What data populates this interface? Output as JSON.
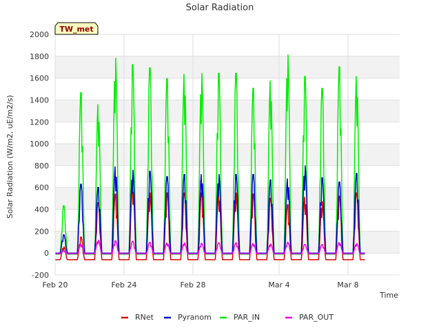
{
  "chart_data": {
    "type": "line",
    "title": "Solar Radiation",
    "xlabel": "Time",
    "ylabel": "Solar Radiation (W/m2, uE/m2/s)",
    "ylim": [
      -200,
      2000
    ],
    "xlim": [
      "2000-02-20",
      "2000-03-11"
    ],
    "yticks": [
      -200,
      0,
      200,
      400,
      600,
      800,
      1000,
      1200,
      1400,
      1600,
      1800,
      2000
    ],
    "xticks": [
      {
        "label": "Feb 20",
        "date": "2000-02-20"
      },
      {
        "label": "Feb 24",
        "date": "2000-02-24"
      },
      {
        "label": "Feb 28",
        "date": "2000-02-28"
      },
      {
        "label": "Mar 4",
        "date": "2000-03-04"
      },
      {
        "label": "Mar 8",
        "date": "2000-03-08"
      }
    ],
    "annotation": "TW_met",
    "grid": true,
    "legend_position": "bottom",
    "series": [
      {
        "name": "RNet",
        "color": "#dd0000",
        "night_value": -60,
        "daily_peaks": [
          [
            "2000-02-20",
            60
          ],
          [
            "2000-02-21",
            150
          ],
          [
            "2000-02-22",
            470
          ],
          [
            "2000-02-23",
            550
          ],
          [
            "2000-02-24",
            650
          ],
          [
            "2000-02-25",
            560
          ],
          [
            "2000-02-26",
            560
          ],
          [
            "2000-02-27",
            560
          ],
          [
            "2000-02-28",
            560
          ],
          [
            "2000-02-29",
            560
          ],
          [
            "2000-03-01",
            560
          ],
          [
            "2000-03-02",
            550
          ],
          [
            "2000-03-03",
            510
          ],
          [
            "2000-03-04",
            450
          ],
          [
            "2000-03-05",
            520
          ],
          [
            "2000-03-06",
            480
          ],
          [
            "2000-03-07",
            530
          ],
          [
            "2000-03-08",
            560
          ]
        ]
      },
      {
        "name": "Pyranom",
        "color": "#0000cc",
        "night_value": 0,
        "daily_peaks": [
          [
            "2000-02-20",
            170
          ],
          [
            "2000-02-21",
            640
          ],
          [
            "2000-02-22",
            610
          ],
          [
            "2000-02-23",
            800
          ],
          [
            "2000-02-24",
            770
          ],
          [
            "2000-02-25",
            760
          ],
          [
            "2000-02-26",
            710
          ],
          [
            "2000-02-27",
            730
          ],
          [
            "2000-02-28",
            730
          ],
          [
            "2000-02-29",
            730
          ],
          [
            "2000-03-01",
            730
          ],
          [
            "2000-03-02",
            730
          ],
          [
            "2000-03-03",
            680
          ],
          [
            "2000-03-04",
            690
          ],
          [
            "2000-03-05",
            810
          ],
          [
            "2000-03-06",
            700
          ],
          [
            "2000-03-07",
            660
          ],
          [
            "2000-03-08",
            740
          ]
        ]
      },
      {
        "name": "PAR_IN",
        "color": "#00ee00",
        "night_value": -10,
        "daily_peaks": [
          [
            "2000-02-20",
            440
          ],
          [
            "2000-02-21",
            1490
          ],
          [
            "2000-02-22",
            1380
          ],
          [
            "2000-02-23",
            1810
          ],
          [
            "2000-02-24",
            1750
          ],
          [
            "2000-02-25",
            1720
          ],
          [
            "2000-02-26",
            1620
          ],
          [
            "2000-02-27",
            1660
          ],
          [
            "2000-02-28",
            1670
          ],
          [
            "2000-02-29",
            1670
          ],
          [
            "2000-03-01",
            1670
          ],
          [
            "2000-03-02",
            1530
          ],
          [
            "2000-03-03",
            1600
          ],
          [
            "2000-03-04",
            1840
          ],
          [
            "2000-03-05",
            1640
          ],
          [
            "2000-03-06",
            1530
          ],
          [
            "2000-03-07",
            1730
          ],
          [
            "2000-03-08",
            1640
          ]
        ]
      },
      {
        "name": "PAR_OUT",
        "color": "#ee00ee",
        "night_value": -5,
        "daily_peaks": [
          [
            "2000-02-20",
            20
          ],
          [
            "2000-02-21",
            80
          ],
          [
            "2000-02-22",
            120
          ],
          [
            "2000-02-23",
            115
          ],
          [
            "2000-02-24",
            110
          ],
          [
            "2000-02-25",
            100
          ],
          [
            "2000-02-26",
            95
          ],
          [
            "2000-02-27",
            95
          ],
          [
            "2000-02-28",
            90
          ],
          [
            "2000-02-29",
            95
          ],
          [
            "2000-03-01",
            95
          ],
          [
            "2000-03-02",
            90
          ],
          [
            "2000-03-03",
            85
          ],
          [
            "2000-03-04",
            100
          ],
          [
            "2000-03-05",
            80
          ],
          [
            "2000-03-06",
            80
          ],
          [
            "2000-03-07",
            100
          ],
          [
            "2000-03-08",
            90
          ]
        ]
      }
    ]
  }
}
